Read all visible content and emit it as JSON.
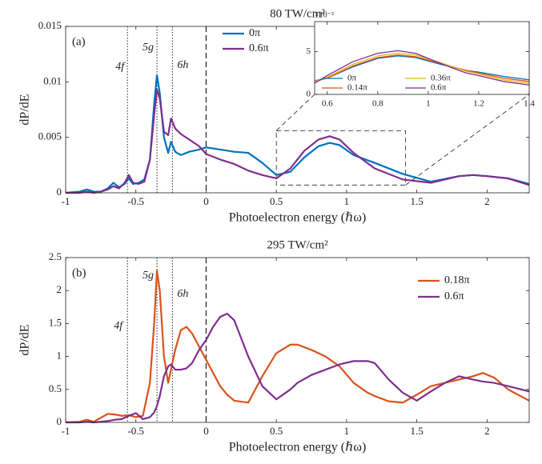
{
  "chart_data": [
    {
      "type": "line",
      "title": "80 TW/cm²",
      "panel_label": "(a)",
      "ylabel": "dP/dE",
      "xlabel": "Photoelectron energy (ℏω)",
      "xlim": [
        -1,
        2.3
      ],
      "ylim": [
        0,
        0.015
      ],
      "xticks": [
        -1,
        -0.5,
        0,
        0.5,
        1,
        1.5,
        2
      ],
      "yticks": [
        0,
        0.005,
        0.01,
        0.015
      ],
      "x": [
        -1,
        -0.9,
        -0.85,
        -0.8,
        -0.75,
        -0.7,
        -0.66,
        -0.62,
        -0.58,
        -0.55,
        -0.52,
        -0.48,
        -0.44,
        -0.4,
        -0.37,
        -0.35,
        -0.33,
        -0.3,
        -0.27,
        -0.25,
        -0.22,
        -0.18,
        -0.12,
        -0.05,
        0,
        0.1,
        0.2,
        0.3,
        0.4,
        0.5,
        0.6,
        0.7,
        0.8,
        0.88,
        0.95,
        1.05,
        1.2,
        1.4,
        1.6,
        1.8,
        1.9,
        2.0,
        2.15,
        2.3
      ],
      "series": [
        {
          "name": "0π",
          "color": "#0072bd",
          "values": [
            0,
            0.0001,
            0.0003,
            0.0001,
            0.0001,
            0.0004,
            0.0009,
            0.0005,
            0.0008,
            0.0013,
            0.0008,
            0.0009,
            0.0012,
            0.003,
            0.008,
            0.0106,
            0.009,
            0.005,
            0.0036,
            0.0046,
            0.0037,
            0.0034,
            0.0037,
            0.0039,
            0.0041,
            0.0039,
            0.0037,
            0.0036,
            0.0027,
            0.0016,
            0.0019,
            0.0032,
            0.0042,
            0.0045,
            0.0043,
            0.0034,
            0.0027,
            0.0017,
            0.001,
            0.0015,
            0.0016,
            0.0015,
            0.0013,
            0.0008
          ]
        },
        {
          "name": "0.6π",
          "color": "#7e2f8e",
          "values": [
            0,
            0,
            0.0001,
            0,
            0.0001,
            0.0003,
            0.0006,
            0.0004,
            0.0009,
            0.0016,
            0.0009,
            0.0008,
            0.001,
            0.003,
            0.007,
            0.0093,
            0.0085,
            0.0055,
            0.0052,
            0.0067,
            0.0058,
            0.0053,
            0.0048,
            0.0042,
            0.0035,
            0.003,
            0.0026,
            0.002,
            0.0016,
            0.0013,
            0.0022,
            0.0038,
            0.0048,
            0.0051,
            0.0048,
            0.0036,
            0.0022,
            0.0012,
            0.0009,
            0.0015,
            0.0016,
            0.0015,
            0.0013,
            0.0007
          ]
        }
      ],
      "levels": [
        {
          "label": "4f",
          "x": -0.56
        },
        {
          "label": "5g",
          "x": -0.35
        },
        {
          "label": "6h",
          "x": -0.24
        }
      ],
      "dashed_x": 0,
      "zoom_box": {
        "x": [
          0.5,
          1.42
        ],
        "y": [
          0.0007,
          0.0056
        ]
      }
    },
    {
      "type": "line",
      "title": "295 TW/cm²",
      "panel_label": "(b)",
      "ylabel": "dP/dE",
      "xlabel": "Photoelectron energy (ℏω)",
      "xlim": [
        -1,
        2.3
      ],
      "ylim": [
        0,
        2.5
      ],
      "xticks": [
        -1,
        -0.5,
        0,
        0.5,
        1,
        1.5,
        2
      ],
      "yticks": [
        0,
        0.5,
        1,
        1.5,
        2,
        2.5
      ],
      "x": [
        -1,
        -0.9,
        -0.85,
        -0.8,
        -0.7,
        -0.65,
        -0.6,
        -0.55,
        -0.5,
        -0.45,
        -0.4,
        -0.37,
        -0.35,
        -0.33,
        -0.3,
        -0.27,
        -0.25,
        -0.22,
        -0.18,
        -0.14,
        -0.1,
        -0.05,
        0,
        0.05,
        0.1,
        0.15,
        0.2,
        0.3,
        0.4,
        0.5,
        0.6,
        0.65,
        0.75,
        0.85,
        0.95,
        1.05,
        1.15,
        1.2,
        1.3,
        1.4,
        1.5,
        1.6,
        1.7,
        1.8,
        1.9,
        1.97,
        2.05,
        2.15,
        2.3
      ],
      "series": [
        {
          "name": "0.18π",
          "color": "#d95319",
          "values": [
            0,
            0.01,
            0.04,
            0.01,
            0.13,
            0.12,
            0.1,
            0.11,
            0.08,
            0.1,
            0.6,
            1.5,
            2.3,
            2.0,
            1.0,
            0.6,
            0.8,
            1.1,
            1.4,
            1.45,
            1.35,
            1.15,
            0.95,
            0.75,
            0.55,
            0.42,
            0.33,
            0.3,
            0.7,
            1.05,
            1.18,
            1.18,
            1.1,
            1.0,
            0.85,
            0.6,
            0.45,
            0.4,
            0.32,
            0.3,
            0.42,
            0.55,
            0.6,
            0.65,
            0.7,
            0.75,
            0.68,
            0.5,
            0.33
          ]
        },
        {
          "name": "0.6π",
          "color": "#7e2f8e",
          "values": [
            0,
            0,
            0.01,
            0,
            0.02,
            0.04,
            0.05,
            0.1,
            0.14,
            0.05,
            0.08,
            0.15,
            0.25,
            0.4,
            0.7,
            0.85,
            0.88,
            0.8,
            0.8,
            0.82,
            0.9,
            1.1,
            1.25,
            1.45,
            1.6,
            1.65,
            1.55,
            1.0,
            0.55,
            0.35,
            0.5,
            0.6,
            0.72,
            0.8,
            0.88,
            0.93,
            0.93,
            0.9,
            0.65,
            0.45,
            0.33,
            0.47,
            0.6,
            0.7,
            0.65,
            0.62,
            0.6,
            0.55,
            0.47
          ]
        }
      ],
      "levels": [
        {
          "label": "4f",
          "x": -0.56
        },
        {
          "label": "5g",
          "x": -0.35
        },
        {
          "label": "6h",
          "x": -0.24
        }
      ],
      "dashed_x": 0
    },
    {
      "type": "line",
      "ytick_multiplier": "×10⁻³",
      "xlim": [
        0.55,
        1.4
      ],
      "ylim": [
        0,
        0.0085
      ],
      "xticks": [
        0.6,
        0.8,
        1,
        1.2,
        1.4
      ],
      "yticks": [
        0,
        {
          "value": 0.005,
          "label": "5"
        }
      ],
      "x": [
        0.55,
        0.6,
        0.7,
        0.8,
        0.88,
        0.95,
        1.05,
        1.15,
        1.2,
        1.3,
        1.4
      ],
      "series": [
        {
          "name": "0π",
          "color": "#0072bd",
          "values": [
            0.0016,
            0.0019,
            0.0032,
            0.0042,
            0.0045,
            0.0043,
            0.0035,
            0.0028,
            0.0026,
            0.0021,
            0.0017
          ]
        },
        {
          "name": "0.14π",
          "color": "#d95319",
          "values": [
            0.0015,
            0.0019,
            0.0033,
            0.0043,
            0.0046,
            0.0044,
            0.0036,
            0.0028,
            0.0025,
            0.0019,
            0.0015
          ]
        },
        {
          "name": "0.36π",
          "color": "#edb120",
          "values": [
            0.0015,
            0.002,
            0.0035,
            0.0045,
            0.0048,
            0.0046,
            0.0037,
            0.0027,
            0.0024,
            0.0017,
            0.0013
          ]
        },
        {
          "name": "0.6π",
          "color": "#7e2f8e",
          "values": [
            0.0013,
            0.0022,
            0.0038,
            0.0048,
            0.0051,
            0.0048,
            0.0036,
            0.0025,
            0.0022,
            0.0015,
            0.0011
          ]
        }
      ]
    }
  ]
}
